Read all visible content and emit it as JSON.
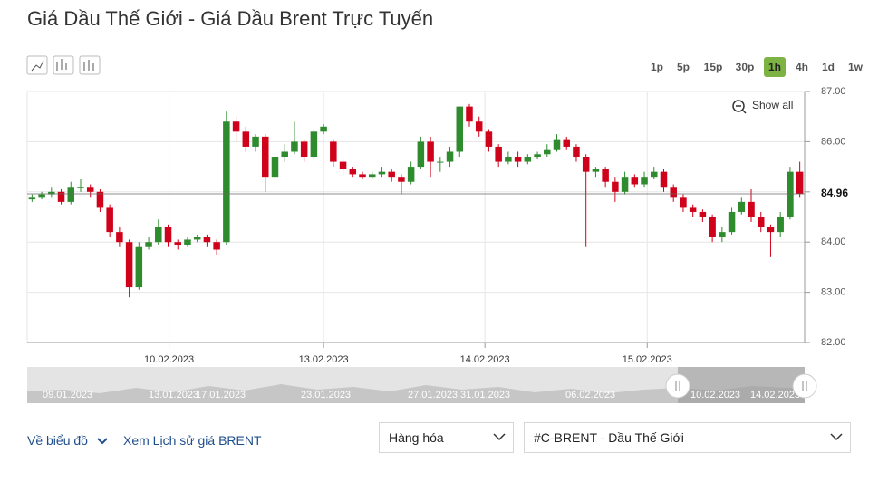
{
  "header": {
    "title": "Giá Dầu Thế Giới - Giá Dầu Brent Trực Tuyến"
  },
  "toolbar": {
    "intervals": [
      "1p",
      "5p",
      "15p",
      "30p",
      "1h",
      "4h",
      "1d",
      "1w"
    ],
    "active": "1h",
    "show_all": "Show all"
  },
  "chart_data": {
    "type": "candlestick",
    "open": [
      84.85,
      84.9,
      84.95,
      85.0,
      84.8,
      85.1,
      85.1,
      85.0,
      84.7,
      84.2,
      84.0,
      83.1,
      83.9,
      84.0,
      84.3,
      84.0,
      83.95,
      84.05,
      84.1,
      84.0,
      84.0,
      86.4,
      86.2,
      85.9,
      86.1,
      85.3,
      85.7,
      85.8,
      86.0,
      85.7,
      86.2,
      86.0,
      85.6,
      85.45,
      85.35,
      85.3,
      85.35,
      85.4,
      85.3,
      85.2,
      85.5,
      86.0,
      85.6,
      85.6,
      85.8,
      86.7,
      86.4,
      86.2,
      85.9,
      85.6,
      85.7,
      85.6,
      85.7,
      85.75,
      85.85,
      86.05,
      85.9,
      85.7,
      85.4,
      85.45,
      85.2,
      85.0,
      85.3,
      85.15,
      85.3,
      85.4,
      85.1,
      84.9,
      84.7,
      84.6,
      84.5,
      84.1,
      84.2,
      84.6,
      84.8,
      84.5,
      84.3,
      84.2,
      84.5,
      85.4
    ],
    "high": [
      84.95,
      85.0,
      85.1,
      85.05,
      85.2,
      85.25,
      85.15,
      85.05,
      84.75,
      84.3,
      84.05,
      84.0,
      84.1,
      84.45,
      84.35,
      84.05,
      84.1,
      84.15,
      84.15,
      84.05,
      86.6,
      86.5,
      86.3,
      86.15,
      86.15,
      85.8,
      85.95,
      86.4,
      86.05,
      86.25,
      86.35,
      86.05,
      85.65,
      85.5,
      85.4,
      85.4,
      85.5,
      85.45,
      85.35,
      85.6,
      86.1,
      86.1,
      85.7,
      85.9,
      86.7,
      86.75,
      86.5,
      86.25,
      85.95,
      85.8,
      85.8,
      85.75,
      85.8,
      85.95,
      86.15,
      86.1,
      85.95,
      85.75,
      85.5,
      85.5,
      85.3,
      85.4,
      85.35,
      85.4,
      85.5,
      85.45,
      85.15,
      84.95,
      84.75,
      84.65,
      84.55,
      84.3,
      84.7,
      84.9,
      85.05,
      84.6,
      84.35,
      84.6,
      85.5,
      85.6
    ],
    "low": [
      84.8,
      84.85,
      84.9,
      84.75,
      84.75,
      85.0,
      84.9,
      84.6,
      84.1,
      83.9,
      82.9,
      83.05,
      83.85,
      83.95,
      83.9,
      83.85,
      83.9,
      84.0,
      83.9,
      83.75,
      83.95,
      86.0,
      85.8,
      85.8,
      85.0,
      85.1,
      85.6,
      85.75,
      85.6,
      85.65,
      86.15,
      85.5,
      85.35,
      85.3,
      85.25,
      85.25,
      85.3,
      85.2,
      84.95,
      85.15,
      85.45,
      85.3,
      85.4,
      85.5,
      85.7,
      86.3,
      86.1,
      85.8,
      85.5,
      85.55,
      85.5,
      85.55,
      85.65,
      85.7,
      85.8,
      85.85,
      85.6,
      83.9,
      85.3,
      85.1,
      84.8,
      84.95,
      85.1,
      85.1,
      85.25,
      85.0,
      84.8,
      84.6,
      84.5,
      84.4,
      84.0,
      84.0,
      84.15,
      84.55,
      84.4,
      84.2,
      83.7,
      84.1,
      84.45,
      84.9
    ],
    "close": [
      84.9,
      84.95,
      85.0,
      84.8,
      85.1,
      85.1,
      85.0,
      84.7,
      84.2,
      84.0,
      83.1,
      83.9,
      84.0,
      84.3,
      84.0,
      83.95,
      84.05,
      84.1,
      84.0,
      83.85,
      86.4,
      86.2,
      85.9,
      86.1,
      85.3,
      85.7,
      85.8,
      86.0,
      85.7,
      86.2,
      86.3,
      85.6,
      85.45,
      85.35,
      85.3,
      85.35,
      85.4,
      85.3,
      85.2,
      85.5,
      86.0,
      85.6,
      85.6,
      85.8,
      86.7,
      86.4,
      86.2,
      85.9,
      85.6,
      85.7,
      85.6,
      85.7,
      85.75,
      85.85,
      86.05,
      85.9,
      85.7,
      85.4,
      85.45,
      85.2,
      85.0,
      85.3,
      85.15,
      85.3,
      85.4,
      85.1,
      84.9,
      84.7,
      84.6,
      84.5,
      84.1,
      84.2,
      84.6,
      84.8,
      84.5,
      84.3,
      84.2,
      84.5,
      85.4,
      84.96
    ],
    "up_color": "#2e8b2e",
    "down_color": "#d0021b",
    "last_price": 84.96,
    "ylim": [
      82,
      87
    ],
    "yticks": [
      {
        "value": 82,
        "label": "82.00"
      },
      {
        "value": 83,
        "label": "83.00"
      },
      {
        "value": 84,
        "label": "84.00"
      },
      {
        "value": 85,
        "label": "85.00"
      },
      {
        "value": 86,
        "label": "86.00"
      },
      {
        "value": 87,
        "label": "87.00"
      }
    ],
    "xlim": [
      -0.5,
      79.5
    ],
    "xticks": [
      {
        "value": 14.1,
        "label": "10.02.2023"
      },
      {
        "value": 30,
        "label": "13.02.2023"
      },
      {
        "value": 46.6,
        "label": "14.02.2023"
      },
      {
        "value": 63.3,
        "label": "15.02.2023"
      }
    ],
    "grid": true
  },
  "navigator": {
    "labels": [
      "09.01.2023",
      "13.01.2023",
      "17.01.2023",
      "23.01.2023",
      "27.01.2023",
      "31.01.2023",
      "06.02.2023",
      "10.02.2023",
      "14.02.2023"
    ]
  },
  "footer": {
    "back": "Về biểu đồ",
    "history": "Xem Lịch sử giá BRENT",
    "select1": "Hàng hóa",
    "select2": "#C-BRENT - Dầu Thế Giới"
  }
}
